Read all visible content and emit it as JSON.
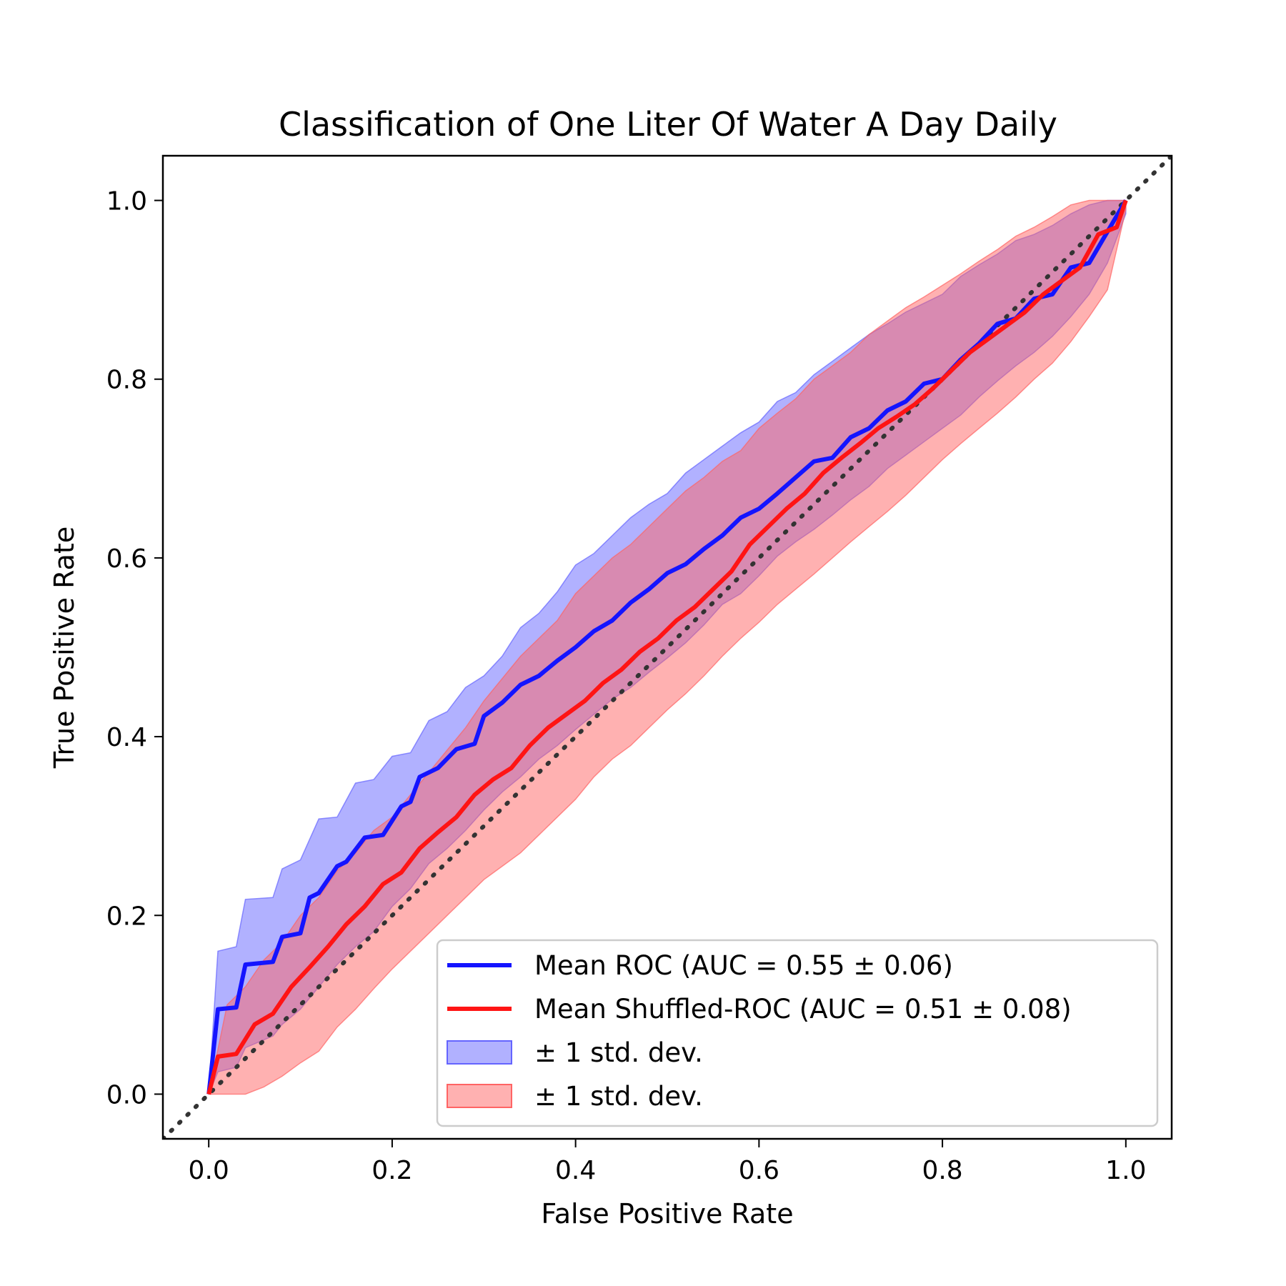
{
  "chart_data": {
    "type": "line",
    "title": "Classification of One Liter Of Water A Day Daily",
    "xlabel": "False Positive Rate",
    "ylabel": "True Positive Rate",
    "xlim": [
      -0.05,
      1.05
    ],
    "ylim": [
      -0.05,
      1.05
    ],
    "xticks": [
      0.0,
      0.2,
      0.4,
      0.6,
      0.8,
      1.0
    ],
    "yticks": [
      0.0,
      0.2,
      0.4,
      0.6,
      0.8,
      1.0
    ],
    "xtick_labels": [
      "0.0",
      "0.2",
      "0.4",
      "0.6",
      "0.8",
      "1.0"
    ],
    "ytick_labels": [
      "0.0",
      "0.2",
      "0.4",
      "0.6",
      "0.8",
      "1.0"
    ],
    "grid": false,
    "legend_position": "lower-right",
    "chance_line": {
      "x": [
        -0.05,
        1.05
      ],
      "y": [
        -0.05,
        1.05
      ],
      "style": "dotted",
      "color": "#333333"
    },
    "series": [
      {
        "name": "Mean ROC (AUC = 0.55 ± 0.06)",
        "color": "#1414ff",
        "x": [
          0.0,
          0.01,
          0.03,
          0.04,
          0.07,
          0.08,
          0.1,
          0.11,
          0.12,
          0.14,
          0.15,
          0.17,
          0.19,
          0.21,
          0.22,
          0.23,
          0.25,
          0.27,
          0.29,
          0.3,
          0.32,
          0.34,
          0.36,
          0.38,
          0.4,
          0.42,
          0.44,
          0.46,
          0.48,
          0.5,
          0.52,
          0.54,
          0.56,
          0.58,
          0.6,
          0.62,
          0.64,
          0.66,
          0.68,
          0.7,
          0.72,
          0.74,
          0.76,
          0.78,
          0.8,
          0.82,
          0.84,
          0.86,
          0.88,
          0.9,
          0.92,
          0.94,
          0.96,
          0.98,
          1.0
        ],
        "y": [
          0.0,
          0.095,
          0.097,
          0.145,
          0.148,
          0.176,
          0.18,
          0.22,
          0.225,
          0.255,
          0.26,
          0.287,
          0.29,
          0.322,
          0.327,
          0.355,
          0.365,
          0.386,
          0.392,
          0.423,
          0.438,
          0.458,
          0.468,
          0.485,
          0.5,
          0.518,
          0.53,
          0.55,
          0.565,
          0.583,
          0.593,
          0.61,
          0.625,
          0.645,
          0.655,
          0.672,
          0.69,
          0.708,
          0.712,
          0.735,
          0.745,
          0.765,
          0.775,
          0.795,
          0.8,
          0.822,
          0.84,
          0.862,
          0.868,
          0.89,
          0.895,
          0.925,
          0.93,
          0.965,
          1.0
        ]
      },
      {
        "name": "Mean Shuffled-ROC (AUC = 0.51 ± 0.08)",
        "color": "#ff1414",
        "x": [
          0.0,
          0.01,
          0.03,
          0.05,
          0.07,
          0.09,
          0.11,
          0.13,
          0.15,
          0.17,
          0.19,
          0.21,
          0.23,
          0.25,
          0.27,
          0.29,
          0.31,
          0.33,
          0.35,
          0.37,
          0.39,
          0.41,
          0.43,
          0.45,
          0.47,
          0.49,
          0.51,
          0.53,
          0.55,
          0.57,
          0.59,
          0.61,
          0.63,
          0.65,
          0.67,
          0.69,
          0.71,
          0.73,
          0.75,
          0.77,
          0.79,
          0.81,
          0.83,
          0.85,
          0.87,
          0.89,
          0.91,
          0.93,
          0.95,
          0.97,
          0.99,
          1.0
        ],
        "y": [
          0.0,
          0.042,
          0.045,
          0.078,
          0.09,
          0.12,
          0.142,
          0.165,
          0.19,
          0.21,
          0.235,
          0.248,
          0.275,
          0.293,
          0.31,
          0.335,
          0.352,
          0.365,
          0.39,
          0.41,
          0.425,
          0.44,
          0.46,
          0.475,
          0.495,
          0.51,
          0.53,
          0.545,
          0.565,
          0.585,
          0.615,
          0.635,
          0.655,
          0.672,
          0.695,
          0.712,
          0.728,
          0.745,
          0.758,
          0.772,
          0.79,
          0.81,
          0.83,
          0.845,
          0.86,
          0.875,
          0.895,
          0.91,
          0.925,
          0.962,
          0.97,
          1.0
        ]
      }
    ],
    "bands": [
      {
        "name": "± 1 std. dev.",
        "color": "#6464ff",
        "opacity": 0.5,
        "x": [
          0.0,
          0.01,
          0.03,
          0.04,
          0.07,
          0.08,
          0.1,
          0.12,
          0.14,
          0.16,
          0.18,
          0.2,
          0.22,
          0.24,
          0.26,
          0.28,
          0.3,
          0.32,
          0.34,
          0.36,
          0.38,
          0.4,
          0.42,
          0.44,
          0.46,
          0.48,
          0.5,
          0.52,
          0.54,
          0.56,
          0.58,
          0.6,
          0.62,
          0.64,
          0.66,
          0.68,
          0.7,
          0.72,
          0.74,
          0.76,
          0.78,
          0.8,
          0.82,
          0.84,
          0.86,
          0.88,
          0.9,
          0.92,
          0.94,
          0.96,
          0.98,
          1.0
        ],
        "upper": [
          0.0,
          0.16,
          0.165,
          0.218,
          0.22,
          0.252,
          0.262,
          0.308,
          0.31,
          0.348,
          0.352,
          0.378,
          0.382,
          0.418,
          0.428,
          0.455,
          0.468,
          0.49,
          0.522,
          0.538,
          0.562,
          0.592,
          0.605,
          0.625,
          0.645,
          0.66,
          0.672,
          0.695,
          0.71,
          0.725,
          0.74,
          0.752,
          0.775,
          0.785,
          0.805,
          0.82,
          0.835,
          0.85,
          0.862,
          0.875,
          0.885,
          0.895,
          0.915,
          0.928,
          0.94,
          0.955,
          0.962,
          0.972,
          0.985,
          0.995,
          1.0,
          1.0
        ],
        "lower": [
          0.0,
          0.025,
          0.03,
          0.052,
          0.065,
          0.078,
          0.095,
          0.12,
          0.145,
          0.165,
          0.182,
          0.21,
          0.23,
          0.258,
          0.275,
          0.295,
          0.318,
          0.338,
          0.355,
          0.375,
          0.39,
          0.408,
          0.425,
          0.442,
          0.455,
          0.472,
          0.488,
          0.505,
          0.525,
          0.548,
          0.56,
          0.58,
          0.602,
          0.618,
          0.632,
          0.648,
          0.665,
          0.68,
          0.7,
          0.715,
          0.73,
          0.745,
          0.76,
          0.78,
          0.798,
          0.815,
          0.83,
          0.848,
          0.87,
          0.895,
          0.93,
          0.985
        ]
      },
      {
        "name": "± 1 std. dev.",
        "color": "#ff6464",
        "opacity": 0.5,
        "x": [
          0.0,
          0.02,
          0.04,
          0.06,
          0.08,
          0.1,
          0.12,
          0.14,
          0.16,
          0.18,
          0.2,
          0.22,
          0.24,
          0.26,
          0.28,
          0.3,
          0.32,
          0.34,
          0.36,
          0.38,
          0.4,
          0.42,
          0.44,
          0.46,
          0.48,
          0.5,
          0.52,
          0.54,
          0.56,
          0.58,
          0.6,
          0.62,
          0.64,
          0.66,
          0.68,
          0.7,
          0.72,
          0.74,
          0.76,
          0.78,
          0.8,
          0.82,
          0.84,
          0.86,
          0.88,
          0.9,
          0.92,
          0.94,
          0.96,
          0.98,
          1.0
        ],
        "upper": [
          0.0,
          0.1,
          0.12,
          0.15,
          0.17,
          0.2,
          0.22,
          0.25,
          0.27,
          0.295,
          0.31,
          0.335,
          0.36,
          0.385,
          0.41,
          0.44,
          0.465,
          0.49,
          0.51,
          0.53,
          0.56,
          0.58,
          0.6,
          0.615,
          0.635,
          0.655,
          0.675,
          0.69,
          0.708,
          0.72,
          0.745,
          0.762,
          0.778,
          0.8,
          0.815,
          0.83,
          0.85,
          0.865,
          0.88,
          0.892,
          0.905,
          0.918,
          0.932,
          0.945,
          0.96,
          0.97,
          0.982,
          0.995,
          1.0,
          1.0,
          1.0
        ],
        "lower": [
          0.0,
          0.0,
          0.0,
          0.008,
          0.02,
          0.035,
          0.048,
          0.075,
          0.095,
          0.118,
          0.14,
          0.16,
          0.18,
          0.2,
          0.22,
          0.24,
          0.255,
          0.27,
          0.29,
          0.31,
          0.33,
          0.355,
          0.375,
          0.39,
          0.41,
          0.43,
          0.448,
          0.468,
          0.49,
          0.51,
          0.528,
          0.548,
          0.565,
          0.582,
          0.6,
          0.618,
          0.635,
          0.652,
          0.67,
          0.69,
          0.71,
          0.728,
          0.745,
          0.762,
          0.78,
          0.8,
          0.818,
          0.842,
          0.87,
          0.9,
          0.99
        ]
      }
    ]
  }
}
